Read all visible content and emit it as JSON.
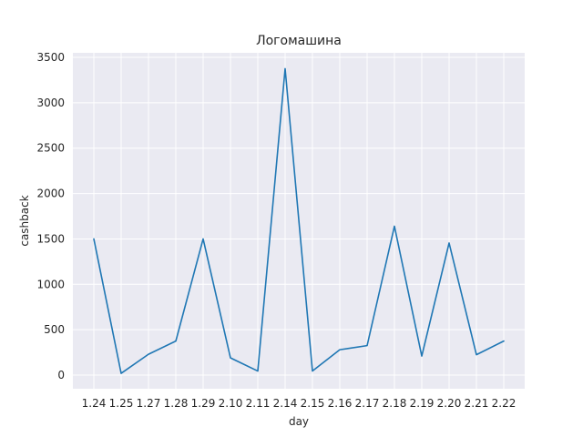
{
  "chart_data": {
    "type": "line",
    "title": "Логомашина",
    "xlabel": "day",
    "ylabel": "cashback",
    "categories": [
      "1.24",
      "1.25",
      "1.27",
      "1.28",
      "1.29",
      "2.10",
      "2.11",
      "2.14",
      "2.15",
      "2.16",
      "2.17",
      "2.18",
      "2.19",
      "2.20",
      "2.21",
      "2.22"
    ],
    "series": [
      {
        "values": [
          1500,
          20,
          230,
          375,
          1500,
          190,
          45,
          3375,
          45,
          280,
          325,
          1640,
          210,
          1455,
          225,
          375
        ],
        "color": "#1f77b4"
      }
    ],
    "ylim": [
      -150,
      3550
    ],
    "yticks": [
      0,
      500,
      1000,
      1500,
      2000,
      2500,
      3000,
      3500
    ],
    "grid": true,
    "background": "#eaeaf2",
    "grid_color": "#ffffff"
  }
}
